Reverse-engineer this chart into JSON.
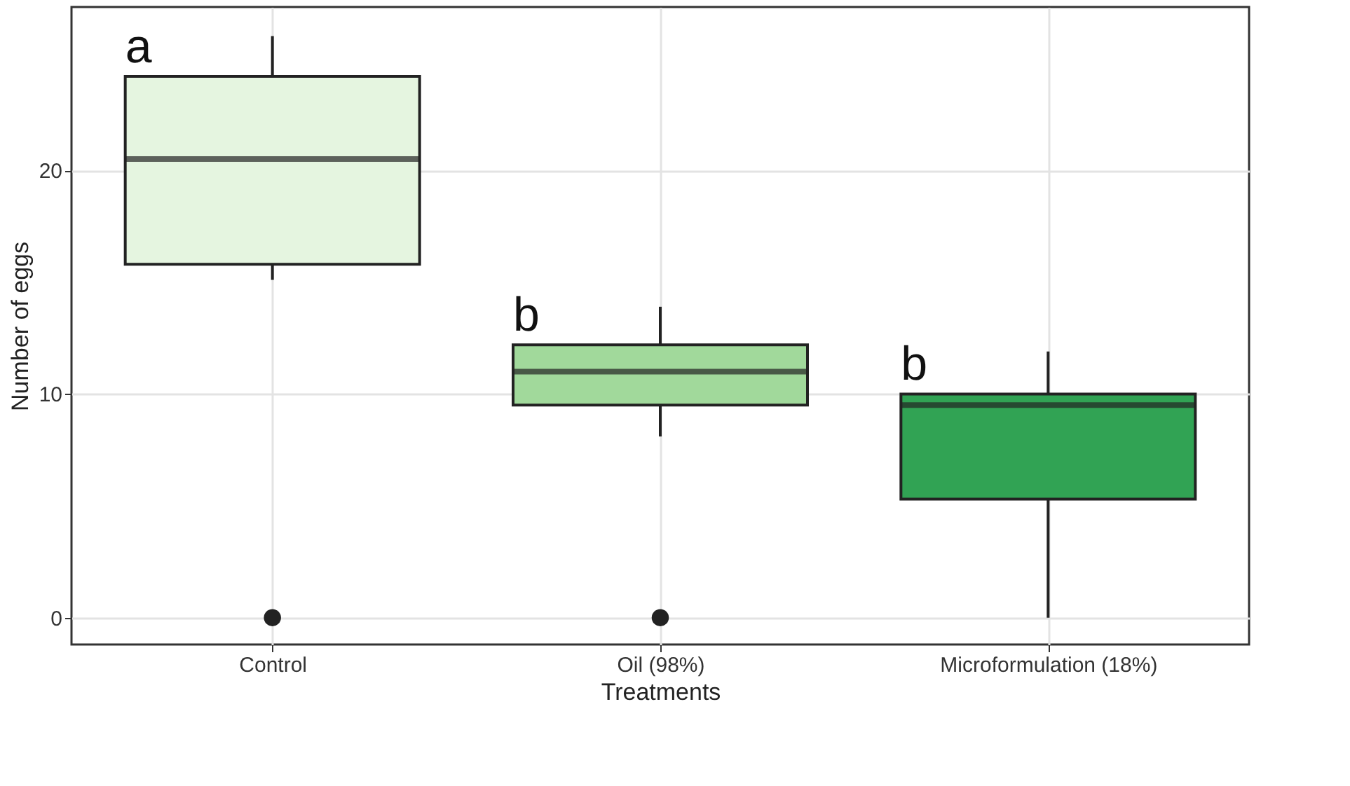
{
  "chart_data": {
    "type": "box",
    "xlabel": "Treatments",
    "ylabel": "Number of eggs",
    "categories": [
      "Control",
      "Oil (98%)",
      "Microformulation (18%)"
    ],
    "colors": [
      "#e5f5e0",
      "#a1d99b",
      "#31a354"
    ],
    "boxes": [
      {
        "low": 15.1,
        "q1": 15.8,
        "median": 20.5,
        "q3": 24.2,
        "high": 26,
        "outliers": [
          0
        ]
      },
      {
        "low": 8.1,
        "q1": 9.5,
        "median": 11,
        "q3": 12.2,
        "high": 13.9,
        "outliers": [
          0
        ]
      },
      {
        "low": 0,
        "q1": 5.3,
        "median": 9.5,
        "q3": 10,
        "high": 11.9
      }
    ],
    "ylim": [
      -1.2,
      27.3
    ],
    "yticks": [
      0,
      10,
      20
    ],
    "grid": true,
    "annotations": [
      {
        "text": "a",
        "x": "Control",
        "y": 24.4
      },
      {
        "text": "b",
        "x": "Oil (98%)",
        "y": 12.4
      },
      {
        "text": "b",
        "x": "Microformulation (18%)",
        "y": 10.2
      }
    ]
  }
}
